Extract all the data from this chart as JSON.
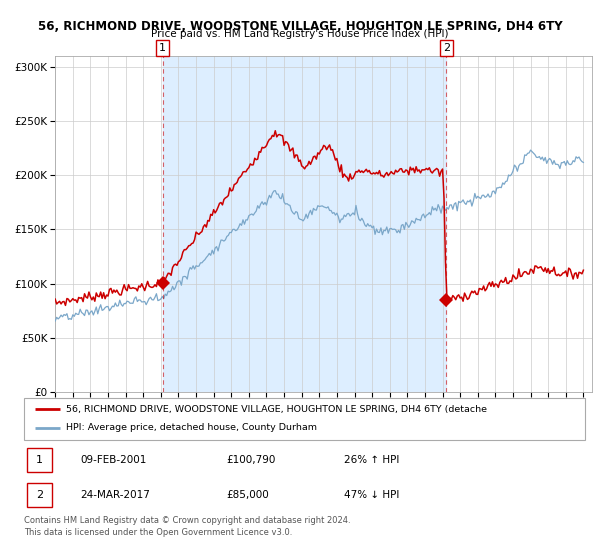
{
  "title_line1": "56, RICHMOND DRIVE, WOODSTONE VILLAGE, HOUGHTON LE SPRING, DH4 6TY",
  "title_line2": "Price paid vs. HM Land Registry's House Price Index (HPI)",
  "ylim": [
    0,
    310000
  ],
  "yticks": [
    0,
    50000,
    100000,
    150000,
    200000,
    250000,
    300000
  ],
  "ytick_labels": [
    "£0",
    "£50K",
    "£100K",
    "£150K",
    "£200K",
    "£250K",
    "£300K"
  ],
  "sale1_price": 100790,
  "sale1_x": 2001.1,
  "sale2_price": 85000,
  "sale2_x": 2017.22,
  "red_line_color": "#cc0000",
  "blue_line_color": "#7ba7c9",
  "background_fill_color": "#ddeeff",
  "grid_color": "#cccccc",
  "legend_line1": "56, RICHMOND DRIVE, WOODSTONE VILLAGE, HOUGHTON LE SPRING, DH4 6TY (detache",
  "legend_line2": "HPI: Average price, detached house, County Durham",
  "table_row1": [
    "1",
    "09-FEB-2001",
    "£100,790",
    "26% ↑ HPI"
  ],
  "table_row2": [
    "2",
    "24-MAR-2017",
    "£85,000",
    "47% ↓ HPI"
  ],
  "footnote": "Contains HM Land Registry data © Crown copyright and database right 2024.\nThis data is licensed under the Open Government Licence v3.0."
}
